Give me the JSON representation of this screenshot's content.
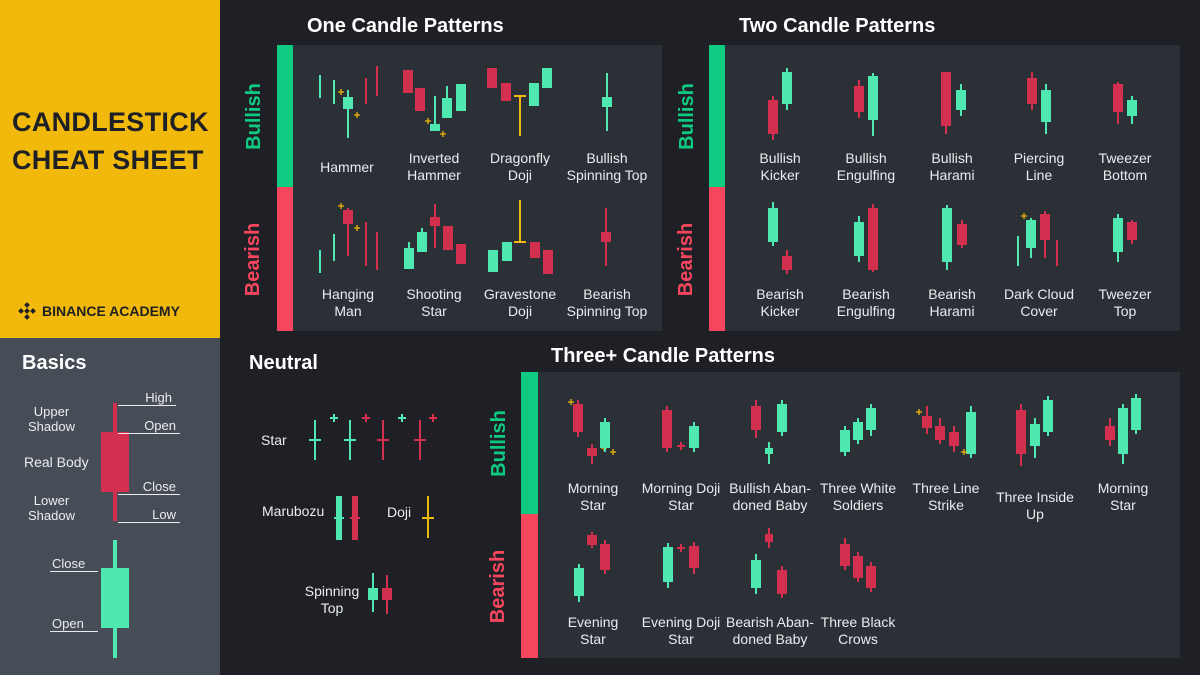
{
  "title": {
    "line1": "CANDLESTICK",
    "line2": "CHEAT SHEET"
  },
  "brand": {
    "name": "BINANCE ACADEMY"
  },
  "colors": {
    "bull": "#0ecb81",
    "bear": "#f6465d",
    "candle_bull": "#4ee8b0",
    "candle_bear": "#d32f4e",
    "doji": "#f0b90b",
    "accent": "#f0b90b"
  },
  "sections": {
    "one": "One Candle Patterns",
    "two": "Two Candle Patterns",
    "three": "Three+ Candle Patterns",
    "neutral": "Neutral",
    "basics": "Basics"
  },
  "categories": {
    "bullish": "Bullish",
    "bearish": "Bearish"
  },
  "one_candle": {
    "bullish": [
      {
        "label": [
          "Hammer"
        ]
      },
      {
        "label": [
          "Inverted",
          "Hammer"
        ]
      },
      {
        "label": [
          "Dragonfly",
          "Doji"
        ]
      },
      {
        "label": [
          "Bullish",
          "Spinning Top"
        ]
      }
    ],
    "bearish": [
      {
        "label": [
          "Hanging",
          "Man"
        ]
      },
      {
        "label": [
          "Shooting",
          "Star"
        ]
      },
      {
        "label": [
          "Gravestone",
          "Doji"
        ]
      },
      {
        "label": [
          "Bearish",
          "Spinning Top"
        ]
      }
    ]
  },
  "two_candle": {
    "bullish": [
      {
        "label": [
          "Bullish",
          "Kicker"
        ]
      },
      {
        "label": [
          "Bullish",
          "Engulfing"
        ]
      },
      {
        "label": [
          "Bullish",
          "Harami"
        ]
      },
      {
        "label": [
          "Piercing",
          "Line"
        ]
      },
      {
        "label": [
          "Tweezer",
          "Bottom"
        ]
      }
    ],
    "bearish": [
      {
        "label": [
          "Bearish",
          "Kicker"
        ]
      },
      {
        "label": [
          "Bearish",
          "Engulfing"
        ]
      },
      {
        "label": [
          "Bearish",
          "Harami"
        ]
      },
      {
        "label": [
          "Dark Cloud",
          "Cover"
        ]
      },
      {
        "label": [
          "Tweezer",
          "Top"
        ]
      }
    ]
  },
  "three_candle": {
    "bullish": [
      {
        "label": [
          "Morning",
          "Star"
        ]
      },
      {
        "label": [
          "Morning Doji",
          "Star"
        ]
      },
      {
        "label": [
          "Bullish Aban-",
          "doned Baby"
        ]
      },
      {
        "label": [
          "Three White",
          "Soldiers"
        ]
      },
      {
        "label": [
          "Three Line",
          "Strike"
        ]
      },
      {
        "label": [
          "Three Inside",
          "Up"
        ]
      },
      {
        "label": [
          "Morning",
          "Star"
        ]
      }
    ],
    "bearish": [
      {
        "label": [
          "Evening",
          "Star"
        ]
      },
      {
        "label": [
          "Evening Doji",
          "Star"
        ]
      },
      {
        "label": [
          "Bearish Aban-",
          "doned Baby"
        ]
      },
      {
        "label": [
          "Three Black",
          "Crows"
        ]
      }
    ]
  },
  "neutral": {
    "star": "Star",
    "marubozu": "Marubozu",
    "doji": "Doji",
    "spinning_top": [
      "Spinning",
      "Top"
    ]
  },
  "basics": {
    "upper_shadow": [
      "Upper",
      "Shadow"
    ],
    "real_body": "Real Body",
    "lower_shadow": [
      "Lower",
      "Shadow"
    ],
    "high": "High",
    "open": "Open",
    "close": "Close",
    "low": "Low"
  }
}
